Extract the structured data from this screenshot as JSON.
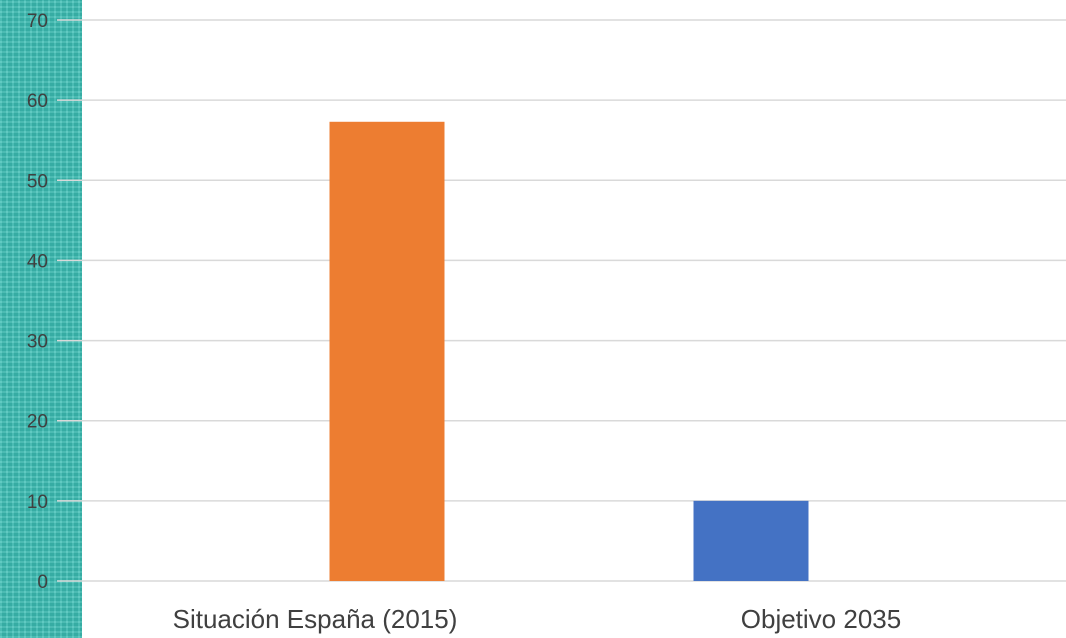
{
  "chart_data": {
    "type": "bar",
    "categories": [
      "Situación España (2015)",
      "Objetivo 2035"
    ],
    "values": [
      57.3,
      10
    ],
    "bar_colors": [
      "#ed7d31",
      "#4472c4"
    ],
    "ylim": [
      0,
      70
    ],
    "yticks": [
      0,
      10,
      20,
      30,
      40,
      50,
      60,
      70
    ],
    "grid": true,
    "gridline_color": "#d9d9d9",
    "side_strip_color": "#3bbdb3"
  }
}
